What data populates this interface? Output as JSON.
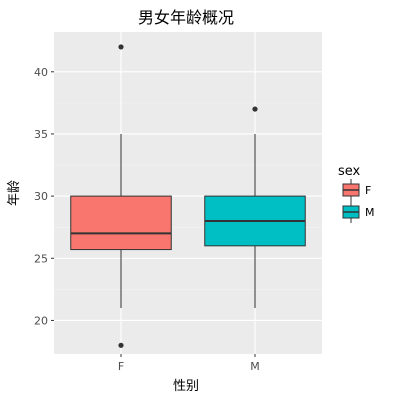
{
  "chart_data": {
    "type": "box",
    "title": "男女年龄概况",
    "xlabel": "性别",
    "ylabel": "年龄",
    "categories": [
      "F",
      "M"
    ],
    "ylim": [
      17.3,
      43.2
    ],
    "yticks": [
      20,
      25,
      30,
      35,
      40
    ],
    "grid": true,
    "legend": {
      "title": "sex",
      "position": "right",
      "entries": [
        {
          "label": "F",
          "color": "#F8766D"
        },
        {
          "label": "M",
          "color": "#00BFC4"
        }
      ]
    },
    "boxes": [
      {
        "category": "F",
        "min": 21,
        "q1": 25.7,
        "median": 27,
        "q3": 30,
        "max": 35,
        "outliers": [
          42,
          18
        ],
        "color": "#F8766D"
      },
      {
        "category": "M",
        "min": 21,
        "q1": 26,
        "median": 28,
        "q3": 30,
        "max": 35,
        "outliers": [
          37
        ],
        "color": "#00BFC4"
      }
    ]
  }
}
